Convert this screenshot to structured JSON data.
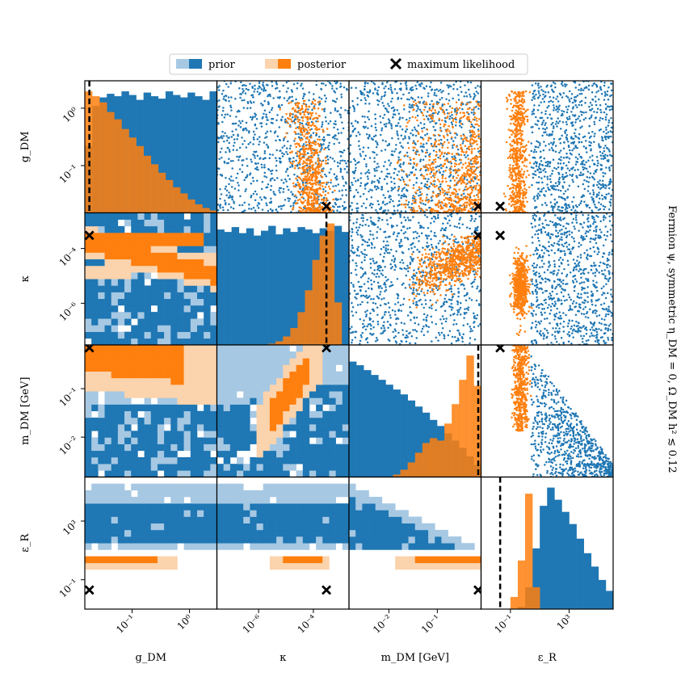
{
  "legend": {
    "items": [
      {
        "label": "prior",
        "light": "#a6c8e3",
        "dark": "#1f77b4"
      },
      {
        "label": "posterior",
        "light": "#fbd3ac",
        "dark": "#ff7f0e"
      },
      {
        "label": "maximum likelihood",
        "symbol": "x-icon"
      }
    ]
  },
  "side_title": "Fermion ψ, symmetric η_DM = 0, Ω_DM h² ≲ 0.12",
  "colors": {
    "prior": "#1f77b4",
    "prior_light": "#a6c8e3",
    "posterior": "#ff7f0e",
    "posterior_light": "#fbd3ac",
    "ml_line": "#000000"
  },
  "chart_data": {
    "type": "corner",
    "parameters": [
      {
        "name": "g_DM",
        "xlabel": "g_DM",
        "ylabel": "g_DM",
        "log": true,
        "range": [
          0.015,
          3.0
        ],
        "ticks": [
          {
            "value": 0.1,
            "label": "10⁻¹"
          },
          {
            "value": 1,
            "label": "10⁰"
          }
        ]
      },
      {
        "name": "κ",
        "xlabel": "κ",
        "ylabel": "κ",
        "log": true,
        "range": [
          3e-08,
          0.002
        ],
        "ticks": [
          {
            "value": 1e-06,
            "label": "10⁻⁶"
          },
          {
            "value": 0.0001,
            "label": "10⁻⁴"
          }
        ]
      },
      {
        "name": "m_DM",
        "xlabel": "m_DM [GeV]",
        "ylabel": "m_DM [GeV]",
        "log": true,
        "range": [
          0.0015,
          0.8
        ],
        "ticks": [
          {
            "value": 0.01,
            "label": "10⁻²"
          },
          {
            "value": 0.1,
            "label": "10⁻¹"
          }
        ]
      },
      {
        "name": "ε_R",
        "xlabel": "ε_R",
        "ylabel": "ε_R",
        "log": true,
        "range": [
          0.001,
          1000000.0
        ],
        "ticks": [
          {
            "value": 0.1,
            "label": "10⁻¹"
          },
          {
            "value": 1000,
            "label": "10³"
          }
        ]
      }
    ],
    "maximum_likelihood": {
      "g_DM": 0.018,
      "κ": 0.0003,
      "m_DM": 0.7,
      "ε_R": 0.02
    },
    "diagonal": [
      {
        "param": "g_DM",
        "prior": [
          0.55,
          0.88,
          0.95,
          0.98,
          0.96,
          1.0,
          0.97,
          0.93,
          0.99,
          0.96,
          0.94,
          1.0,
          0.97,
          0.95,
          0.99,
          0.96,
          0.93,
          1.0
        ],
        "posterior": [
          1.0,
          0.96,
          0.91,
          0.83,
          0.77,
          0.69,
          0.62,
          0.55,
          0.47,
          0.4,
          0.33,
          0.27,
          0.21,
          0.16,
          0.11,
          0.07,
          0.04,
          0.02
        ]
      },
      {
        "param": "κ",
        "prior": [
          0.95,
          0.93,
          0.97,
          0.92,
          0.96,
          0.9,
          0.94,
          0.98,
          0.91,
          0.96,
          0.93,
          0.97,
          0.95,
          0.92,
          0.96,
          0.94,
          0.98,
          0.93
        ],
        "posterior": [
          0,
          0,
          0,
          0,
          0,
          0,
          0,
          0.01,
          0.03,
          0.07,
          0.14,
          0.27,
          0.45,
          0.7,
          0.9,
          1.0,
          0.35,
          0
        ]
      },
      {
        "param": "m_DM",
        "prior": [
          0.95,
          0.92,
          0.88,
          0.84,
          0.8,
          0.76,
          0.72,
          0.68,
          0.63,
          0.58,
          0.53,
          0.47,
          0.42,
          0.36,
          0.3,
          0.24,
          0.17,
          0.1
        ],
        "posterior": [
          0,
          0,
          0,
          0,
          0,
          0,
          0.02,
          0.06,
          0.12,
          0.2,
          0.28,
          0.32,
          0.3,
          0.44,
          0.6,
          0.8,
          1.0,
          0.75
        ]
      },
      {
        "param": "ε_R",
        "prior": [
          0,
          0,
          0,
          0,
          0,
          0.02,
          0.18,
          0.5,
          0.85,
          1.0,
          0.9,
          0.8,
          0.7,
          0.58,
          0.46,
          0.35,
          0.24,
          0.15
        ],
        "posterior": [
          0,
          0,
          0,
          0,
          0.1,
          0.4,
          0.95,
          0.18,
          0,
          0,
          0,
          0,
          0,
          0,
          0,
          0,
          0,
          0
        ]
      }
    ]
  }
}
